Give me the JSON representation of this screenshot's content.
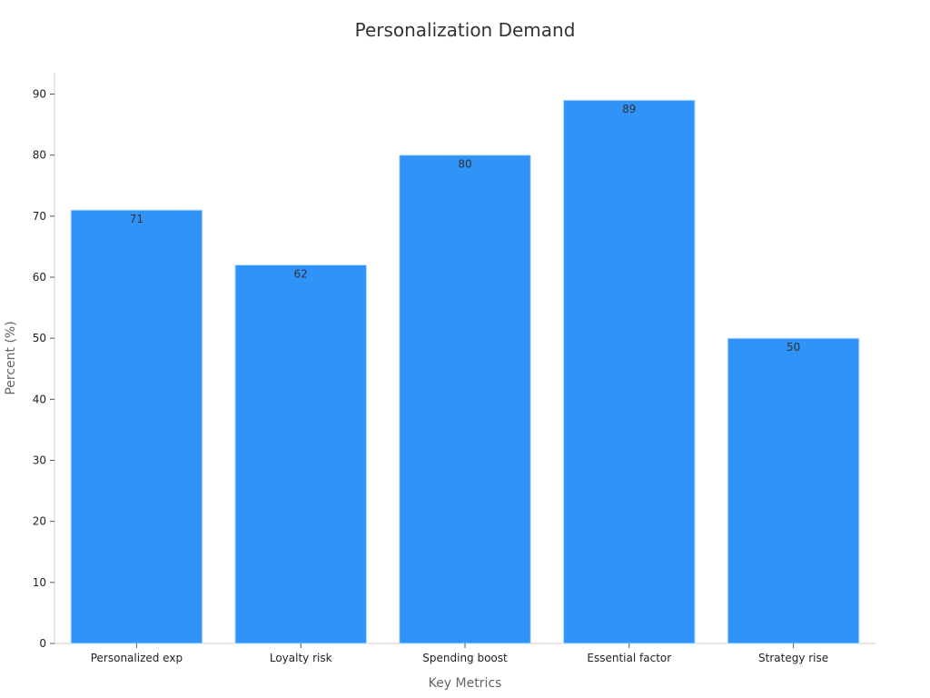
{
  "chart_data": {
    "type": "bar",
    "title": "Personalization Demand",
    "xlabel": "Key Metrics",
    "ylabel": "Percent (%)",
    "categories": [
      "Personalized exp",
      "Loyalty risk",
      "Spending boost",
      "Essential factor",
      "Strategy rise"
    ],
    "values": [
      71,
      62,
      80,
      89,
      50
    ],
    "ylim": [
      0,
      93.5
    ],
    "yticks": [
      0,
      10,
      20,
      30,
      40,
      50,
      60,
      70,
      80,
      90
    ],
    "grid": false,
    "legend": "none",
    "bar_color": "#2f93f8",
    "bar_edge_color": "#bfe0ff"
  }
}
